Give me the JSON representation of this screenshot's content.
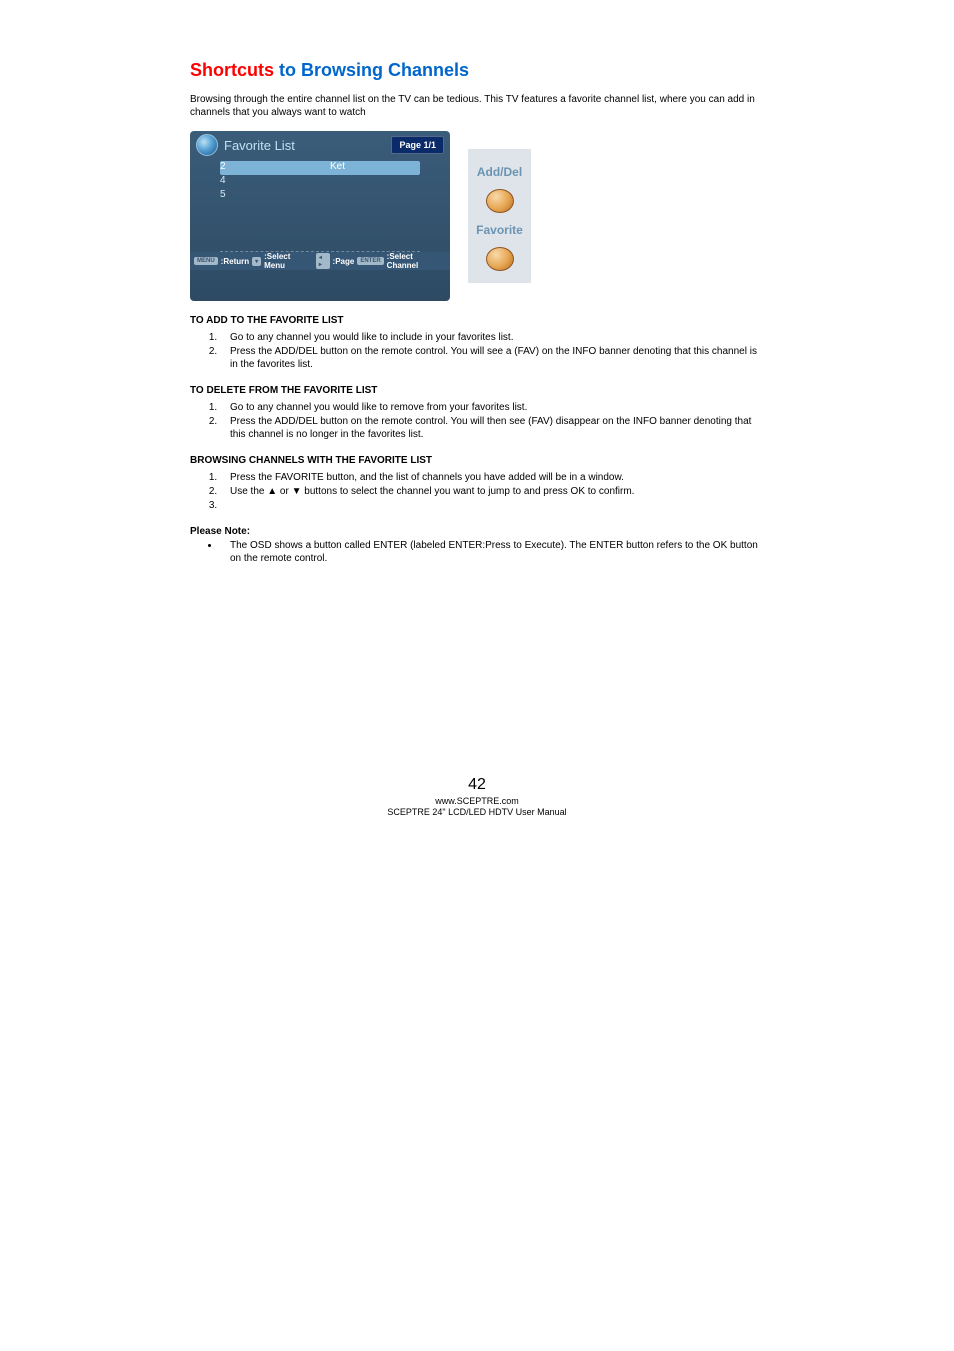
{
  "heading_s": "Shortcuts",
  "heading_rest": " to Browsing Channels",
  "intro": "Browsing through the entire channel list on the TV can be tedious.  This TV features a favorite channel list, where you can add in channels that you always want to watch",
  "favlist": {
    "title": "Favorite List",
    "page_badge": "Page 1/1",
    "rows": [
      {
        "ch": "2",
        "name": "Ket",
        "selected": true
      },
      {
        "ch": "4",
        "name": "",
        "selected": false
      },
      {
        "ch": "5",
        "name": "",
        "selected": false
      }
    ],
    "footer": {
      "k1": "MENU",
      "t1": ":Return",
      "k2": "▾",
      "t2": ":Select Menu",
      "k3": "◂ ▸",
      "t3": ":Page",
      "k4": "ENTER",
      "t4": ":Select Channel"
    }
  },
  "right_buttons": {
    "label1": "Add/Del",
    "label2": "Favorite"
  },
  "sec1_heading": "TO ADD TO THE FAVORITE LIST",
  "sec1_items": [
    "Go to any channel you would like to include in your favorites list.",
    "Press the ADD/DEL button on the remote control.  You will see a (FAV) on the INFO banner denoting that this channel is in the favorites list."
  ],
  "sec2_heading": "TO DELETE FROM THE FAVORITE LIST",
  "sec2_items": [
    "Go to any channel you would like to remove from your favorites list.",
    "Press the ADD/DEL button on the remote control.  You will then see (FAV) disappear on the INFO banner denoting that this channel is no longer in the favorites list."
  ],
  "sec3_heading": "BROWSING CHANNELS WITH THE FAVORITE LIST",
  "sec3_items": [
    "Press the FAVORITE button, and the list of channels you have added will be in a window.",
    "Use the ▲ or ▼ buttons to select the channel you want to jump to and press OK to confirm.",
    ""
  ],
  "please_note_label": "Please Note:",
  "please_note_item": "The OSD shows a button called ENTER (labeled ENTER:Press to Execute).  The ENTER button refers to the OK button on the remote control.",
  "footer": {
    "page_number": "42",
    "url": "www.SCEPTRE.com",
    "model": "SCEPTRE 24\" LCD/LED HDTV User Manual"
  }
}
